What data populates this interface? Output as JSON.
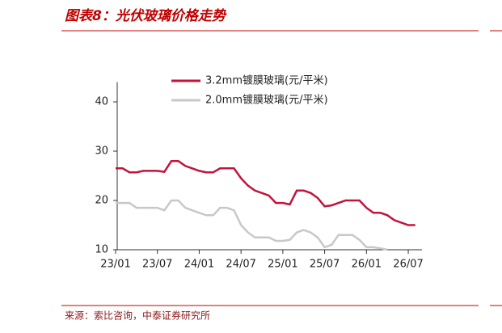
{
  "chart_data": {
    "type": "line",
    "title": "图表8：光伏玻璃价格走势",
    "source": "来源：索比咨询，中泰证券研究所",
    "categories": [
      "23/01",
      null,
      null,
      null,
      null,
      null,
      "23/07",
      null,
      null,
      null,
      null,
      null,
      "24/01",
      null,
      null,
      null,
      null,
      null,
      "24/07",
      null,
      null,
      null,
      null,
      null,
      "25/01",
      null,
      null,
      null,
      null,
      null,
      "25/07",
      null,
      null,
      null,
      null,
      null,
      "26/01",
      null,
      null,
      null,
      null,
      null,
      "26/07",
      null
    ],
    "series": [
      {
        "name": "3.2mm镀膜玻璃(元/平米)",
        "color": "#c0143c",
        "values": [
          26.5,
          26.5,
          25.7,
          25.7,
          26,
          26,
          26,
          25.8,
          28,
          28,
          27,
          26.5,
          26,
          25.7,
          25.7,
          26.5,
          26.5,
          26.5,
          24.5,
          23,
          22,
          21.5,
          21,
          19.5,
          19.5,
          19.2,
          22,
          22,
          21.5,
          20.5,
          18.8,
          19,
          19.5,
          20,
          20,
          20,
          18.5,
          17.5,
          17.5,
          17,
          16,
          15.5,
          15,
          15
        ]
      },
      {
        "name": "2.0mm镀膜玻璃(元/平米)",
        "color": "#c8c8c8",
        "values": [
          19.5,
          19.5,
          19.5,
          18.5,
          18.5,
          18.5,
          18.5,
          18,
          20,
          20,
          18.5,
          18,
          17.5,
          17,
          17,
          18.5,
          18.5,
          18,
          15,
          13.5,
          12.5,
          12.5,
          12.5,
          11.8,
          11.8,
          12,
          13.5,
          14,
          13.5,
          12.5,
          10.5,
          11,
          13,
          13,
          13,
          12,
          10.5,
          10.5,
          10.3,
          10,
          null,
          null,
          null,
          null
        ]
      }
    ],
    "ylim": [
      10,
      44
    ],
    "yticks": [
      10,
      20,
      30,
      40
    ]
  }
}
